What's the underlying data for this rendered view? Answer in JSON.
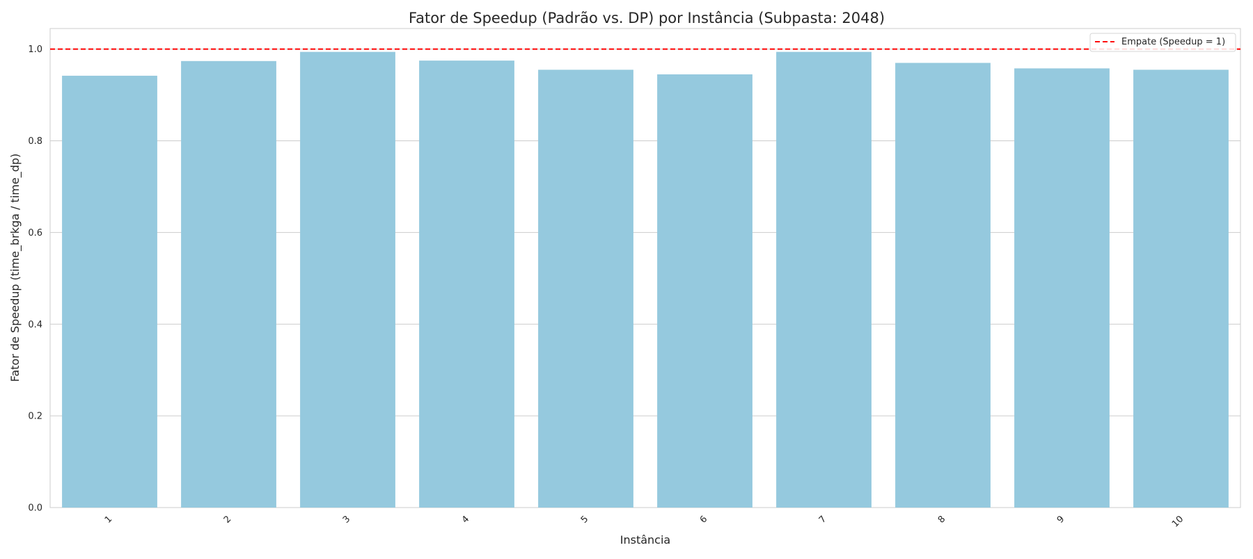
{
  "chart_data": {
    "type": "bar",
    "title": "Fator de Speedup (Padrão vs. DP) por Instância (Subpasta: 2048)",
    "xlabel": "Instância",
    "ylabel": "Fator de Speedup (time_brkga / time_dp)",
    "categories": [
      "1",
      "2",
      "3",
      "4",
      "5",
      "6",
      "7",
      "8",
      "9",
      "10"
    ],
    "series": [
      {
        "values": [
          0.942,
          0.974,
          0.994,
          0.975,
          0.955,
          0.945,
          0.994,
          0.97,
          0.958,
          0.955
        ]
      }
    ],
    "ylim": [
      0,
      1.045
    ],
    "yticks": [
      "0.0",
      "0.2",
      "0.4",
      "0.6",
      "0.8",
      "1.0"
    ],
    "reference_line": {
      "y": 1.0,
      "color": "#ff0000",
      "style": "dashed",
      "label": "Empate (Speedup = 1)"
    },
    "bar_color": "#95c9de",
    "grid": "y",
    "legend_position": "top-right",
    "xtick_rotation": 45
  }
}
